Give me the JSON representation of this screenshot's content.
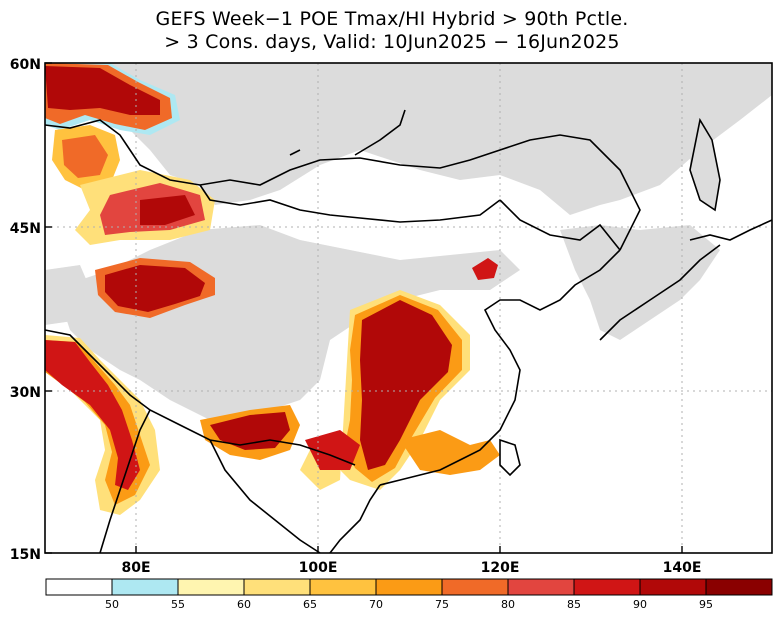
{
  "title": {
    "line1": "GEFS Week−1 POE Tmax/HI Hybrid > 90th Pctle.",
    "line2": "> 3 Cons. days, Valid: 10Jun2025 − 16Jun2025"
  },
  "axes": {
    "lat_ticks": [
      "60N",
      "45N",
      "30N",
      "15N"
    ],
    "lon_ticks": [
      "80E",
      "100E",
      "120E",
      "140E"
    ]
  },
  "colorbar": {
    "labels": [
      "50",
      "55",
      "60",
      "65",
      "70",
      "75",
      "80",
      "85",
      "90",
      "95"
    ],
    "colors": [
      "#ffffff",
      "#aee8f2",
      "#fff5b0",
      "#ffe07a",
      "#ffc23f",
      "#fb9b15",
      "#f06a28",
      "#e2453f",
      "#d01515",
      "#b10808",
      "#8a0000"
    ]
  },
  "colors": {
    "land_mask": "#dcdcdc",
    "coast": "#000000",
    "grid": "#b0b0b0"
  }
}
